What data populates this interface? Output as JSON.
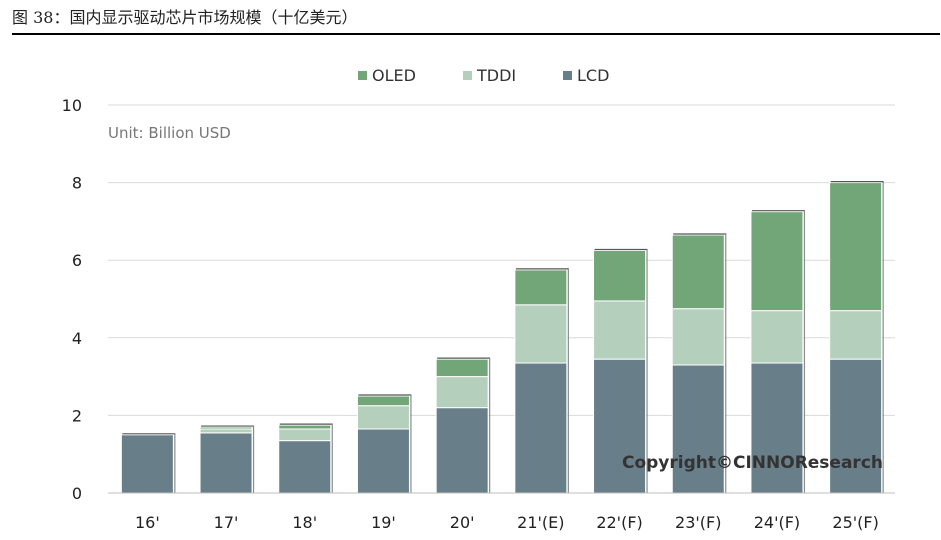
{
  "figure": {
    "title": "图 38：国内显示驱动芯片市场规模（十亿美元）"
  },
  "chart_data": {
    "type": "bar",
    "stacked": true,
    "categories": [
      "16'",
      "17'",
      "18'",
      "19'",
      "20'",
      "21'(E)",
      "22'(F)",
      "23'(F)",
      "24'(F)",
      "25'(F)"
    ],
    "series": [
      {
        "name": "LCD",
        "color": "#687f8a",
        "values": [
          1.5,
          1.55,
          1.35,
          1.65,
          2.2,
          3.35,
          3.45,
          3.3,
          3.35,
          3.45
        ]
      },
      {
        "name": "TDDI",
        "color": "#b5cfbd",
        "values": [
          0.0,
          0.1,
          0.3,
          0.6,
          0.8,
          1.5,
          1.5,
          1.45,
          1.35,
          1.25
        ]
      },
      {
        "name": "OLED",
        "color": "#72a578",
        "values": [
          0.0,
          0.05,
          0.1,
          0.25,
          0.45,
          0.9,
          1.3,
          1.9,
          2.55,
          3.3
        ]
      }
    ],
    "legend_order": [
      "OLED",
      "TDDI",
      "LCD"
    ],
    "legend_position": "top-center",
    "ylim": [
      0,
      10
    ],
    "yticks": [
      "0",
      "2",
      "4",
      "6",
      "8",
      "10"
    ],
    "grid": true,
    "unit_label": "Unit: Billion USD",
    "annotation": "Copyright©CINNOResearch"
  }
}
